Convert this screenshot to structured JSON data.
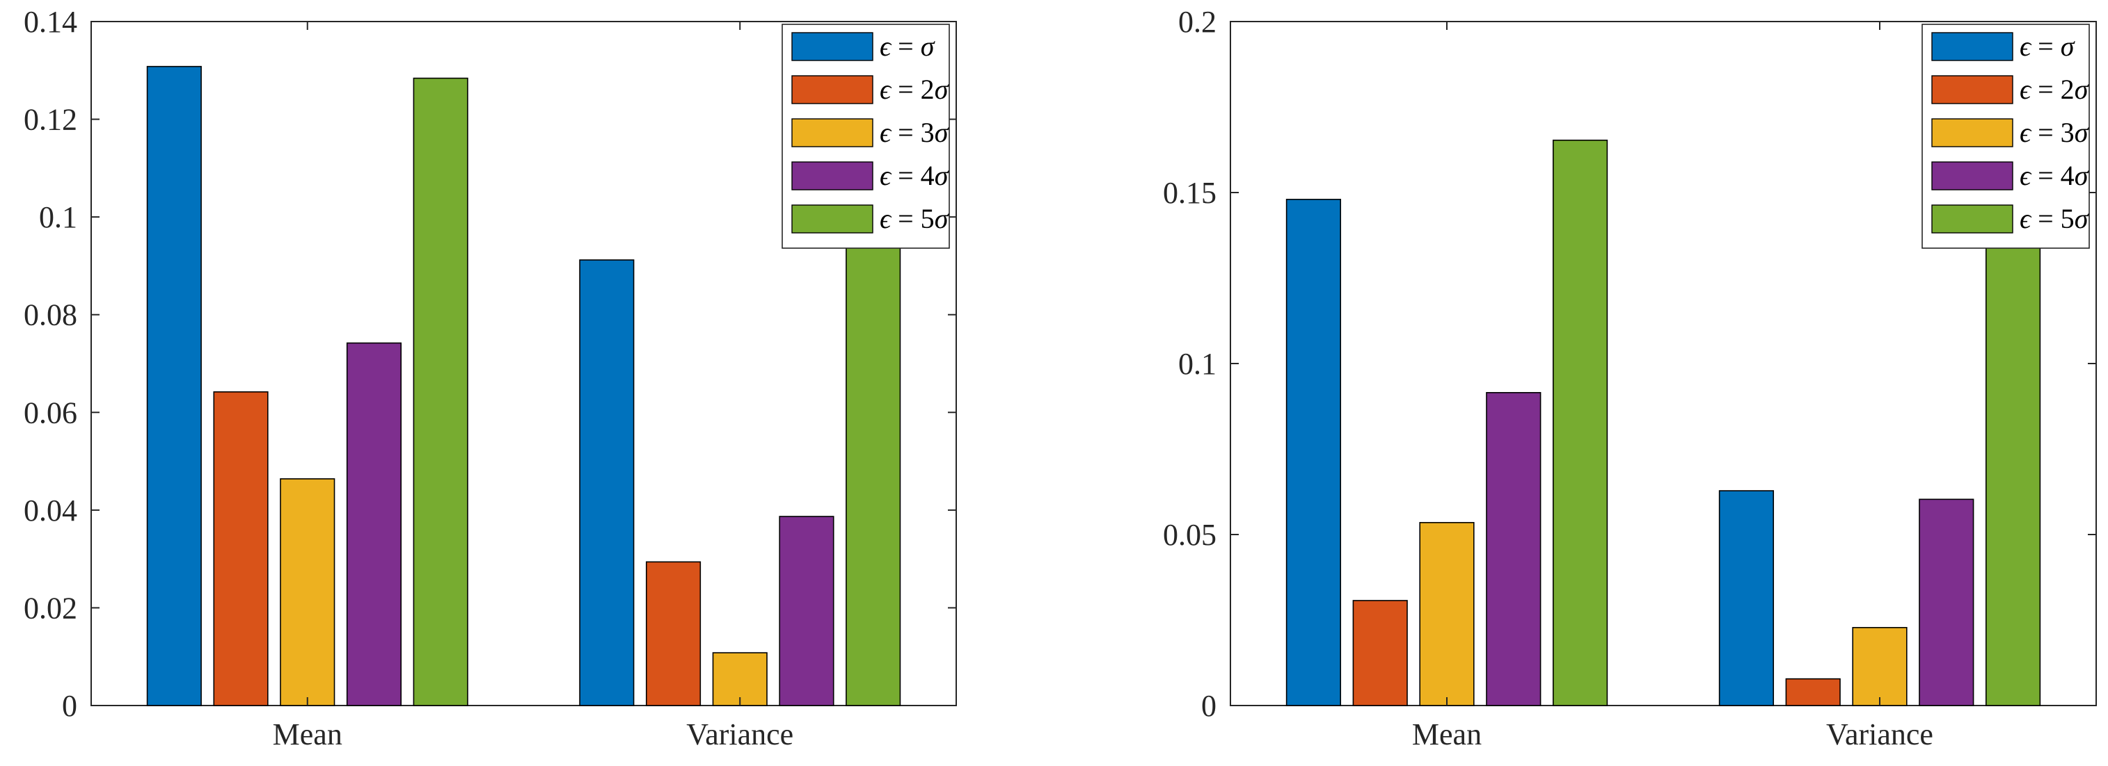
{
  "chart_data": [
    {
      "type": "bar",
      "title": "",
      "xlabel": "",
      "ylabel": "",
      "categories": [
        "Mean",
        "Variance"
      ],
      "ylim": [
        0,
        0.14
      ],
      "yticks": [
        0,
        0.02,
        0.04,
        0.06,
        0.08,
        0.1,
        0.12,
        0.14
      ],
      "ytick_labels": [
        "0",
        "0.02",
        "0.04",
        "0.06",
        "0.08",
        "0.1",
        "0.12",
        "0.14"
      ],
      "legend_position": "top-right",
      "series": [
        {
          "name": "ϵ = σ",
          "color": "#0072BD",
          "values": [
            0.1308,
            0.0912
          ]
        },
        {
          "name": "ϵ = 2σ",
          "color": "#D95319",
          "values": [
            0.0642,
            0.0294
          ]
        },
        {
          "name": "ϵ = 3σ",
          "color": "#EDB120",
          "values": [
            0.0464,
            0.0108
          ]
        },
        {
          "name": "ϵ = 4σ",
          "color": "#7E2F8E",
          "values": [
            0.0742,
            0.0387
          ]
        },
        {
          "name": "ϵ = 5σ",
          "color": "#77AC30",
          "values": [
            0.1284,
            0.1016
          ]
        }
      ]
    },
    {
      "type": "bar",
      "title": "",
      "xlabel": "",
      "ylabel": "",
      "categories": [
        "Mean",
        "Variance"
      ],
      "ylim": [
        0,
        0.2
      ],
      "yticks": [
        0,
        0.05,
        0.1,
        0.15,
        0.2
      ],
      "ytick_labels": [
        "0",
        "0.05",
        "0.1",
        "0.15",
        "0.2"
      ],
      "legend_position": "top-right",
      "series": [
        {
          "name": "ϵ = σ",
          "color": "#0072BD",
          "values": [
            0.148,
            0.0628
          ]
        },
        {
          "name": "ϵ = 2σ",
          "color": "#D95319",
          "values": [
            0.0307,
            0.0078
          ]
        },
        {
          "name": "ϵ = 3σ",
          "color": "#EDB120",
          "values": [
            0.0535,
            0.0228
          ]
        },
        {
          "name": "ϵ = 4σ",
          "color": "#7E2F8E",
          "values": [
            0.0915,
            0.0603
          ]
        },
        {
          "name": "ϵ = 5σ",
          "color": "#77AC30",
          "values": [
            0.1653,
            0.147
          ]
        }
      ]
    }
  ]
}
